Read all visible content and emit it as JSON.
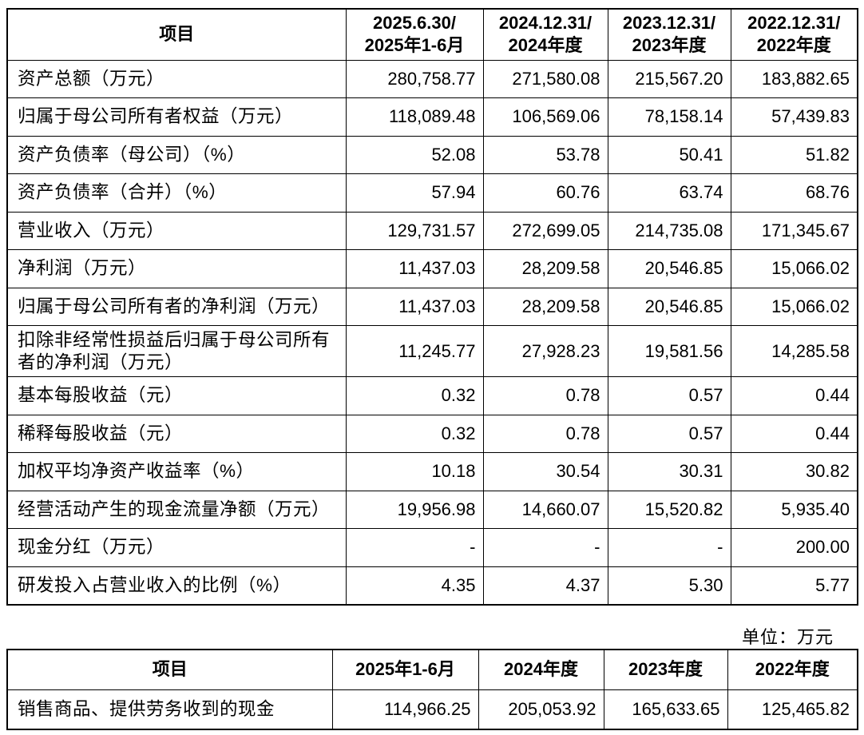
{
  "table1": {
    "header": [
      "项目",
      [
        "2025.6.30/",
        "2025年1-6月"
      ],
      [
        "2024.12.31/",
        "2024年度"
      ],
      [
        "2023.12.31/",
        "2023年度"
      ],
      [
        "2022.12.31/",
        "2022年度"
      ]
    ],
    "rows": [
      [
        "资产总额（万元）",
        "280,758.77",
        "271,580.08",
        "215,567.20",
        "183,882.65"
      ],
      [
        "归属于母公司所有者权益（万元）",
        "118,089.48",
        "106,569.06",
        "78,158.14",
        "57,439.83"
      ],
      [
        "资产负债率（母公司）（%）",
        "52.08",
        "53.78",
        "50.41",
        "51.82"
      ],
      [
        "资产负债率（合并）（%）",
        "57.94",
        "60.76",
        "63.74",
        "68.76"
      ],
      [
        "营业收入（万元）",
        "129,731.57",
        "272,699.05",
        "214,735.08",
        "171,345.67"
      ],
      [
        "净利润（万元）",
        "11,437.03",
        "28,209.58",
        "20,546.85",
        "15,066.02"
      ],
      [
        "归属于母公司所有者的净利润（万元）",
        "11,437.03",
        "28,209.58",
        "20,546.85",
        "15,066.02"
      ],
      [
        "扣除非经常性损益后归属于母公司所有者的净利润（万元）",
        "11,245.77",
        "27,928.23",
        "19,581.56",
        "14,285.58"
      ],
      [
        "基本每股收益（元）",
        "0.32",
        "0.78",
        "0.57",
        "0.44"
      ],
      [
        "稀释每股收益（元）",
        "0.32",
        "0.78",
        "0.57",
        "0.44"
      ],
      [
        "加权平均净资产收益率（%）",
        "10.18",
        "30.54",
        "30.31",
        "30.82"
      ],
      [
        "经营活动产生的现金流量净额（万元）",
        "19,956.98",
        "14,660.07",
        "15,520.82",
        "5,935.40"
      ],
      [
        "现金分红（万元）",
        "-",
        "-",
        "-",
        "200.00"
      ],
      [
        "研发投入占营业收入的比例（%）",
        "4.35",
        "4.37",
        "5.30",
        "5.77"
      ]
    ]
  },
  "unit_note": "单位：万元",
  "table2": {
    "header": [
      "项目",
      "2025年1-6月",
      "2024年度",
      "2023年度",
      "2022年度"
    ],
    "rows": [
      [
        "销售商品、提供劳务收到的现金",
        "114,966.25",
        "205,053.92",
        "165,633.65",
        "125,465.82"
      ]
    ]
  }
}
